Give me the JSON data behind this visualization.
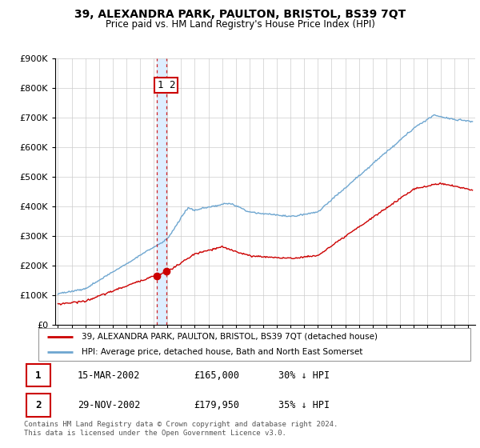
{
  "title": "39, ALEXANDRA PARK, PAULTON, BRISTOL, BS39 7QT",
  "subtitle": "Price paid vs. HM Land Registry's House Price Index (HPI)",
  "legend_line1": "39, ALEXANDRA PARK, PAULTON, BRISTOL, BS39 7QT (detached house)",
  "legend_line2": "HPI: Average price, detached house, Bath and North East Somerset",
  "sale1_label": "1",
  "sale1_date": "15-MAR-2002",
  "sale1_price": "£165,000",
  "sale1_hpi": "30% ↓ HPI",
  "sale2_label": "2",
  "sale2_date": "29-NOV-2002",
  "sale2_price": "£179,950",
  "sale2_hpi": "35% ↓ HPI",
  "footnote": "Contains HM Land Registry data © Crown copyright and database right 2024.\nThis data is licensed under the Open Government Licence v3.0.",
  "hpi_color": "#6ea6d0",
  "price_color": "#cc0000",
  "sale_x1": 2002.21,
  "sale_x2": 2002.92,
  "sale_y1": 165000,
  "sale_y2": 179950,
  "vband_color": "#ddeeff",
  "ylim": [
    0,
    900000
  ],
  "xlim": [
    1994.8,
    2025.5
  ],
  "yticks": [
    0,
    100000,
    200000,
    300000,
    400000,
    500000,
    600000,
    700000,
    800000,
    900000
  ],
  "xticks": [
    1995,
    1996,
    1997,
    1998,
    1999,
    2000,
    2001,
    2002,
    2003,
    2004,
    2005,
    2006,
    2007,
    2008,
    2009,
    2010,
    2011,
    2012,
    2013,
    2014,
    2015,
    2016,
    2017,
    2018,
    2019,
    2020,
    2021,
    2022,
    2023,
    2024,
    2025
  ]
}
